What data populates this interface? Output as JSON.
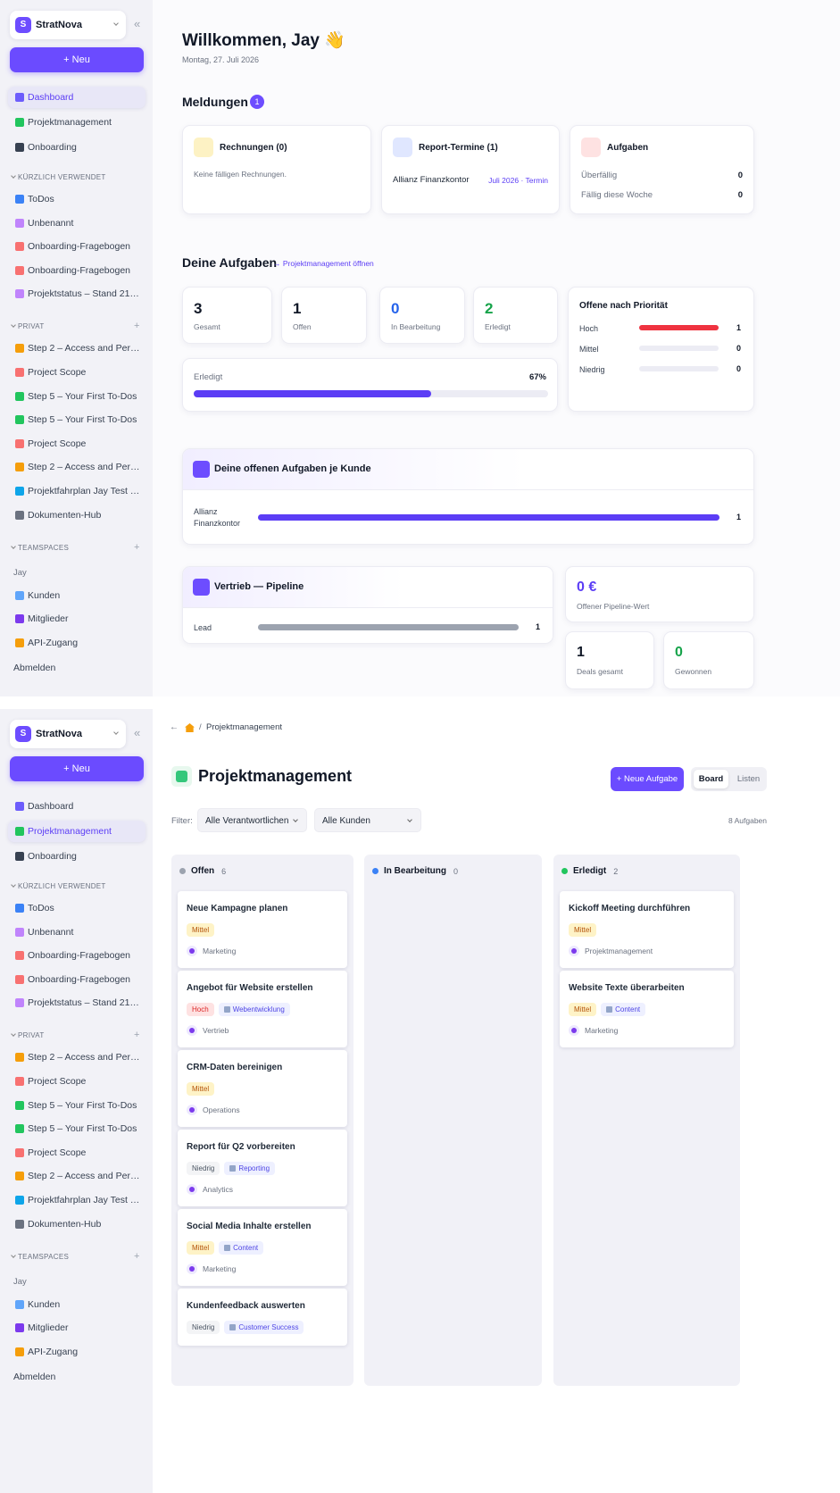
{
  "sidebar": {
    "logo": "S",
    "workspace": "StratNova",
    "collapse": "«",
    "new_button": "+ Neu",
    "main_nav": [
      {
        "label": "Dashboard",
        "color": "#6d5dfc"
      },
      {
        "label": "Projektmanagement",
        "color": "#22c55e"
      },
      {
        "label": "Onboarding",
        "color": "#374151"
      }
    ],
    "sections": [
      {
        "title": "KÜRZLICH VERWENDET",
        "items": [
          {
            "label": "ToDos",
            "color": "#3b82f6"
          },
          {
            "label": "Unbenannt",
            "color": "#c084fc"
          },
          {
            "label": "Onboarding-Fragebogen",
            "color": "#f87171"
          },
          {
            "label": "Onboarding-Fragebogen",
            "color": "#f87171"
          },
          {
            "label": "Projektstatus – Stand 21…",
            "color": "#c084fc"
          }
        ]
      },
      {
        "title": "PRIVAT",
        "add": "+",
        "items": [
          {
            "label": "Step 2 – Access and Per…",
            "color": "#f59e0b"
          },
          {
            "label": "Project Scope",
            "color": "#f87171"
          },
          {
            "label": "Step 5 – Your First To-Dos",
            "color": "#22c55e"
          },
          {
            "label": "Step 5 – Your First To-Dos",
            "color": "#22c55e"
          },
          {
            "label": "Project Scope",
            "color": "#f87171"
          },
          {
            "label": "Step 2 – Access and Per…",
            "color": "#f59e0b"
          },
          {
            "label": "Projektfahrplan Jay Test …",
            "color": "#0ea5e9"
          },
          {
            "label": "Dokumenten-Hub",
            "color": "#6b7280"
          }
        ]
      },
      {
        "title": "TEAMSPACES",
        "add": "+",
        "subtitle": "Jay",
        "items": [
          {
            "label": "Kunden",
            "color": "#60a5fa"
          },
          {
            "label": "Mitglieder",
            "color": "#7c3aed"
          },
          {
            "label": "API-Zugang",
            "color": "#f59e0b"
          }
        ]
      }
    ],
    "logout": "Abmelden"
  },
  "dashboard": {
    "active_nav": 0,
    "greeting": "Willkommen, Jay 👋",
    "date": "Montag, 27. Juli 2026",
    "notifications": {
      "title": "Meldungen",
      "count": 1,
      "cards": [
        {
          "title": "Rechnungen (0)",
          "color": "#fdf2c4",
          "text": "Keine fälligen Rechnungen."
        },
        {
          "title": "Report-Termine (1)",
          "color": "#e0e7ff",
          "rows": [
            {
              "label": "Allianz Finanzkontor",
              "value": "Juli 2026 · Termin"
            }
          ]
        },
        {
          "title": "Aufgaben",
          "color": "#fee2e2",
          "rows": [
            {
              "label": "Überfällig",
              "value": 0
            },
            {
              "label": "Fällig diese Woche",
              "value": 0
            }
          ]
        }
      ]
    },
    "tasks": {
      "title": "Deine Aufgaben",
      "link": "→ Projektmanagement öffnen",
      "stats": [
        {
          "value": 3,
          "label": "Gesamt",
          "color": "#111827"
        },
        {
          "value": 1,
          "label": "Offen",
          "color": "#111827"
        },
        {
          "value": 0,
          "label": "In Bearbeitung",
          "color": "#2563eb"
        },
        {
          "value": 2,
          "label": "Erledigt",
          "color": "#16a34a"
        }
      ],
      "progress": {
        "label": "Erledigt",
        "value": 67,
        "value_label": "67%",
        "color": "#5b3df5"
      },
      "priority": {
        "title": "Offene nach Priorität",
        "rows": [
          {
            "label": "Hoch",
            "value": 1,
            "color": "#ef3340"
          },
          {
            "label": "Mittel",
            "value": 0,
            "color": "#f59e0b"
          },
          {
            "label": "Niedrig",
            "value": 0,
            "color": "#9ca3af"
          }
        ]
      }
    },
    "customers": {
      "title": "Deine offenen Aufgaben je Kunde",
      "rows": [
        {
          "label": "Allianz Finanzkontor",
          "value": 1,
          "color": "#5b3df5"
        }
      ]
    },
    "pipeline": {
      "title": "Vertrieb — Pipeline",
      "rows": [
        {
          "label": "Lead",
          "value": 1,
          "color": "#9ca3af"
        }
      ],
      "total": {
        "value": "0 €",
        "label": "Offener Pipeline-Wert"
      },
      "deals": {
        "value": 1,
        "label": "Deals gesamt"
      },
      "won": {
        "value": 0,
        "label": "Gewonnen"
      }
    }
  },
  "projects": {
    "active_nav": 1,
    "breadcrumb": {
      "back": "←",
      "separator": "/",
      "current": "Projektmanagement"
    },
    "title": "Projektmanagement",
    "new_task": "+ Neue Aufgabe",
    "views": [
      "Board",
      "Listen"
    ],
    "active_view": 0,
    "filter_label": "Filter:",
    "filters": [
      "Alle Verantwortlichen",
      "Alle Kunden"
    ],
    "task_count": "8 Aufgaben",
    "priority_levels": [
      {
        "label": "Hoch",
        "color": "#dc2626",
        "bg": "#fee2e2"
      },
      {
        "label": "Mittel",
        "color": "#b45309",
        "bg": "#fef3c7"
      },
      {
        "label": "Niedrig",
        "color": "#4b5563",
        "bg": "#f3f4f6"
      }
    ],
    "columns": [
      {
        "name": "Offen",
        "count": 6,
        "color": "#9ca3af",
        "cards": [
          {
            "title": "Neue Kampagne planen",
            "priority": 1,
            "team": "Marketing"
          },
          {
            "title": "Angebot für Website erstellen",
            "priority": 0,
            "project": "Webentwicklung",
            "team": "Vertrieb"
          },
          {
            "title": "CRM-Daten bereinigen",
            "priority": 1,
            "team": "Operations"
          },
          {
            "title": "Report für Q2 vorbereiten",
            "priority": 2,
            "project": "Reporting",
            "team": "Analytics"
          },
          {
            "title": "Social Media Inhalte erstellen",
            "priority": 1,
            "project": "Content",
            "team": "Marketing"
          },
          {
            "title": "Kundenfeedback auswerten",
            "priority": 2,
            "project": "Customer Success"
          }
        ]
      },
      {
        "name": "In Bearbeitung",
        "count": 0,
        "color": "#3b82f6",
        "cards": []
      },
      {
        "name": "Erledigt",
        "count": 2,
        "color": "#22c55e",
        "cards": [
          {
            "title": "Kickoff Meeting durchführen",
            "priority": 1,
            "team": "Projektmanagement"
          },
          {
            "title": "Website Texte überarbeiten",
            "priority": 1,
            "project": "Content",
            "team": "Marketing"
          }
        ]
      }
    ]
  }
}
